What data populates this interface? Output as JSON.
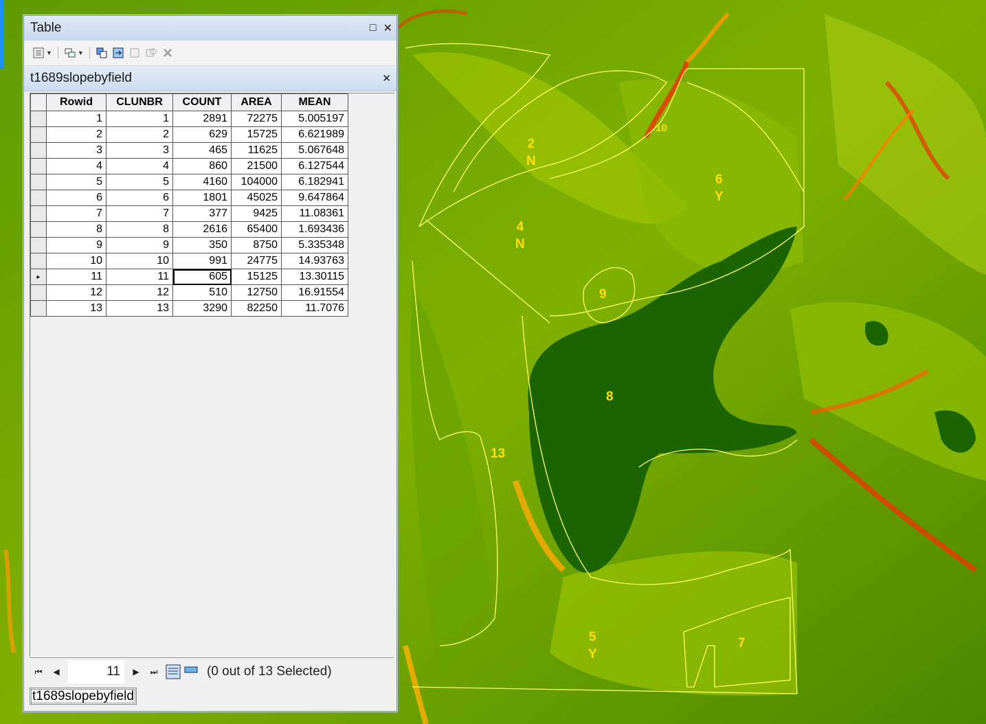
{
  "window": {
    "title": "Table",
    "restore_glyph": "□",
    "close_glyph": "✕"
  },
  "toolbar": {
    "items": [
      "table-options-icon",
      "related-tables-icon",
      "select-by-attributes-icon",
      "switch-selection-icon",
      "clear-selection-icon",
      "zoom-to-selected-icon",
      "delete-selected-icon"
    ]
  },
  "table": {
    "name": "t1689slopebyfield",
    "close_glyph": "✕",
    "columns": [
      "Rowid",
      "CLUNBR",
      "COUNT",
      "AREA",
      "MEAN"
    ],
    "rows": [
      [
        "1",
        "1",
        "2891",
        "72275",
        "5.005197"
      ],
      [
        "2",
        "2",
        "629",
        "15725",
        "6.621989"
      ],
      [
        "3",
        "3",
        "465",
        "11625",
        "5.067648"
      ],
      [
        "4",
        "4",
        "860",
        "21500",
        "6.127544"
      ],
      [
        "5",
        "5",
        "4160",
        "104000",
        "6.182941"
      ],
      [
        "6",
        "6",
        "1801",
        "45025",
        "9.647864"
      ],
      [
        "7",
        "7",
        "377",
        "9425",
        "11.08361"
      ],
      [
        "8",
        "8",
        "2616",
        "65400",
        "1.693436"
      ],
      [
        "9",
        "9",
        "350",
        "8750",
        "5.335348"
      ],
      [
        "10",
        "10",
        "991",
        "24775",
        "14.93763"
      ],
      [
        "11",
        "11",
        "605",
        "15125",
        "13.30115"
      ],
      [
        "12",
        "12",
        "510",
        "12750",
        "16.91554"
      ],
      [
        "13",
        "13",
        "3290",
        "82250",
        "11.7076"
      ]
    ],
    "current_row_marker": "▸"
  },
  "navigation": {
    "first": "⏮",
    "prev": "◀",
    "record": "11",
    "next": "▶",
    "last": "⏭",
    "status": "(0 out of 13 Selected)"
  },
  "tabs": [
    "t1689slopebyfield"
  ],
  "map_labels": [
    {
      "id": "2",
      "text1": "2",
      "text2": "N"
    },
    {
      "id": "4",
      "text1": "4",
      "text2": "N"
    },
    {
      "id": "6",
      "text1": "6",
      "text2": "Y"
    },
    {
      "id": "9",
      "text1": "9",
      "text2": ""
    },
    {
      "id": "8",
      "text1": "8",
      "text2": ""
    },
    {
      "id": "13",
      "text1": "13",
      "text2": ""
    },
    {
      "id": "5",
      "text1": "5",
      "text2": "Y"
    },
    {
      "id": "7",
      "text1": "7",
      "text2": ""
    },
    {
      "id": "10",
      "text1": "10",
      "text2": ""
    }
  ],
  "colors": {
    "map_dark": "#1f6a00",
    "map_light": "#a8cc00",
    "map_hot": "#e83a00",
    "boundary": "#ffff66",
    "label": "#ffe100"
  }
}
